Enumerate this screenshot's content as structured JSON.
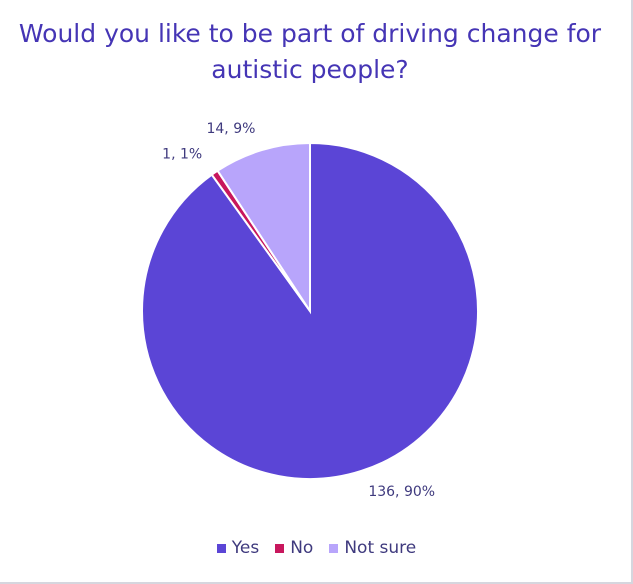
{
  "chart_data": {
    "type": "pie",
    "title": "Would you like to be part of driving change for autistic people?",
    "categories": [
      "Yes",
      "No",
      "Not sure"
    ],
    "values": [
      136,
      1,
      14
    ],
    "value_labels": [
      "136, 90%",
      "1, 1%",
      "14, 9%"
    ],
    "colors": [
      "#5b45d6",
      "#c8175d",
      "#b8a5fb"
    ],
    "legend": "bottom"
  }
}
